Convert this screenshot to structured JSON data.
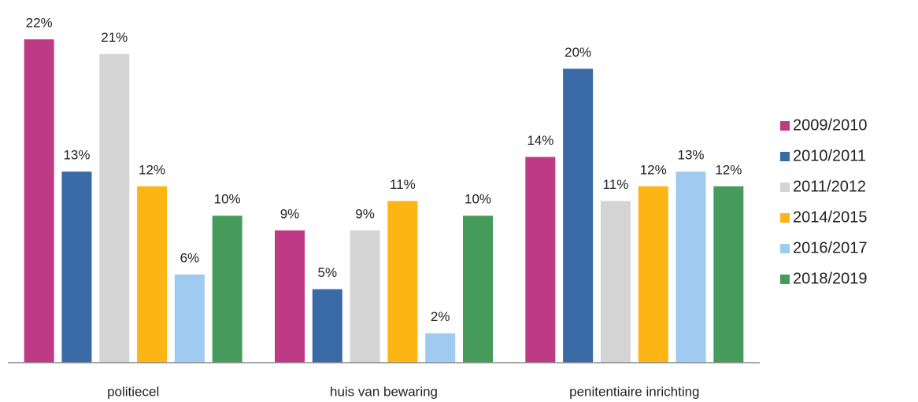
{
  "chart_data": {
    "type": "bar",
    "categories": [
      "politiecel",
      "huis van bewaring",
      "penitentiaire inrichting"
    ],
    "series": [
      {
        "name": "2009/2010",
        "color": "#bf3a84",
        "values": [
          22,
          9,
          14
        ],
        "value_labels": [
          "22%",
          "9%",
          "14%"
        ]
      },
      {
        "name": "2010/2011",
        "color": "#3a6aa6",
        "values": [
          13,
          5,
          20
        ],
        "value_labels": [
          "13%",
          "5%",
          "20%"
        ]
      },
      {
        "name": "2011/2012",
        "color": "#d4d4d4",
        "values": [
          21,
          9,
          11
        ],
        "value_labels": [
          "21%",
          "9%",
          "11%"
        ]
      },
      {
        "name": "2014/2015",
        "color": "#fdb515",
        "values": [
          12,
          11,
          12
        ],
        "value_labels": [
          "12%",
          "11%",
          "12%"
        ]
      },
      {
        "name": "2016/2017",
        "color": "#9ecbef",
        "values": [
          6,
          2,
          13
        ],
        "value_labels": [
          "6%",
          "2%",
          "13%"
        ]
      },
      {
        "name": "2018/2019",
        "color": "#479b5a",
        "values": [
          10,
          10,
          12
        ],
        "value_labels": [
          "10%",
          "10%",
          "12%"
        ]
      }
    ],
    "ylim": [
      0,
      22
    ],
    "legend": "right"
  }
}
